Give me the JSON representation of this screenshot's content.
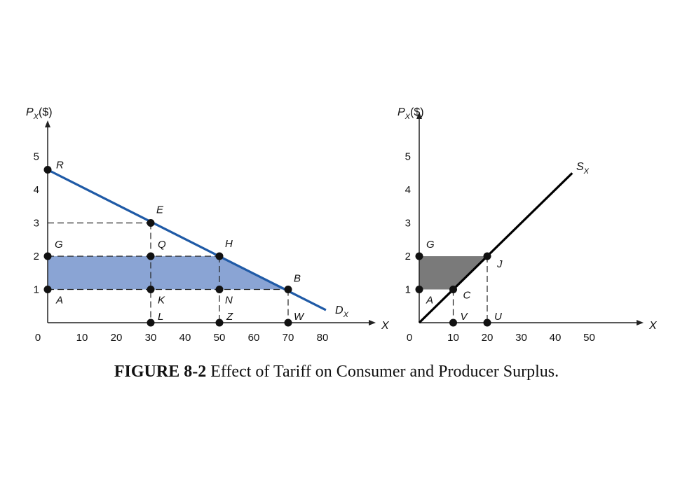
{
  "caption": {
    "label": "FIGURE 8-2",
    "text": "Effect of Tariff on Consumer and Producer Surplus."
  },
  "colors": {
    "demand": "#1f5aa6",
    "cs_fill": "#8aa4d4",
    "supply": "#000000",
    "ps_fill": "#7a7a7a"
  },
  "chart_data": [
    {
      "type": "line",
      "ylabel_main": "P",
      "ylabel_sub": "X",
      "ylabel_unit": "($)",
      "xlabel": "X",
      "xlim": [
        0,
        90
      ],
      "ylim": [
        0,
        5.8
      ],
      "x_ticks": [
        "0",
        "10",
        "20",
        "30",
        "40",
        "50",
        "60",
        "70",
        "80"
      ],
      "y_ticks": [
        "1",
        "2",
        "3",
        "4",
        "5"
      ],
      "series": [
        {
          "name_main": "D",
          "name_sub": "X",
          "x": [
            0,
            81
          ],
          "y": [
            4.6,
            0.38
          ]
        }
      ],
      "shaded_region": {
        "x": [
          0,
          70,
          50,
          0
        ],
        "y": [
          1,
          1,
          2,
          2
        ]
      },
      "points": [
        {
          "label": "R",
          "x": 0,
          "y": 4.6
        },
        {
          "label": "E",
          "x": 30,
          "y": 3
        },
        {
          "label": "G",
          "x": 0,
          "y": 2
        },
        {
          "label": "Q",
          "x": 30,
          "y": 2
        },
        {
          "label": "H",
          "x": 50,
          "y": 2
        },
        {
          "label": "A",
          "x": 0,
          "y": 1
        },
        {
          "label": "K",
          "x": 30,
          "y": 1
        },
        {
          "label": "N",
          "x": 50,
          "y": 1
        },
        {
          "label": "B",
          "x": 70,
          "y": 1
        },
        {
          "label": "L",
          "x": 30,
          "y": 0
        },
        {
          "label": "Z",
          "x": 50,
          "y": 0
        },
        {
          "label": "W",
          "x": 70,
          "y": 0
        }
      ],
      "dashed": [
        {
          "x": [
            0,
            30
          ],
          "y": [
            3,
            3
          ]
        },
        {
          "x": [
            30,
            30
          ],
          "y": [
            3,
            0
          ]
        },
        {
          "x": [
            0,
            50
          ],
          "y": [
            2,
            2
          ]
        },
        {
          "x": [
            50,
            50
          ],
          "y": [
            2,
            0
          ]
        },
        {
          "x": [
            0,
            70
          ],
          "y": [
            1,
            1
          ]
        },
        {
          "x": [
            70,
            70
          ],
          "y": [
            1,
            0
          ]
        }
      ]
    },
    {
      "type": "line",
      "ylabel_main": "P",
      "ylabel_sub": "X",
      "ylabel_unit": "($)",
      "xlabel": "X",
      "xlim": [
        0,
        65
      ],
      "ylim": [
        0,
        6
      ],
      "x_ticks": [
        "0",
        "10",
        "20",
        "30",
        "40",
        "50"
      ],
      "y_ticks": [
        "1",
        "2",
        "3",
        "4",
        "5"
      ],
      "series": [
        {
          "name_main": "S",
          "name_sub": "X",
          "x": [
            0,
            45
          ],
          "y": [
            0,
            4.5
          ]
        }
      ],
      "shaded_region": {
        "x": [
          0,
          10,
          20,
          0
        ],
        "y": [
          1,
          1,
          2,
          2
        ]
      },
      "points": [
        {
          "label": "G",
          "x": 0,
          "y": 2
        },
        {
          "label": "J",
          "x": 20,
          "y": 2
        },
        {
          "label": "A",
          "x": 0,
          "y": 1
        },
        {
          "label": "C",
          "x": 10,
          "y": 1
        },
        {
          "label": "V",
          "x": 10,
          "y": 0
        },
        {
          "label": "U",
          "x": 20,
          "y": 0
        }
      ],
      "dashed": [
        {
          "x": [
            10,
            10
          ],
          "y": [
            1,
            0
          ]
        },
        {
          "x": [
            20,
            20
          ],
          "y": [
            2,
            0
          ]
        }
      ]
    }
  ]
}
